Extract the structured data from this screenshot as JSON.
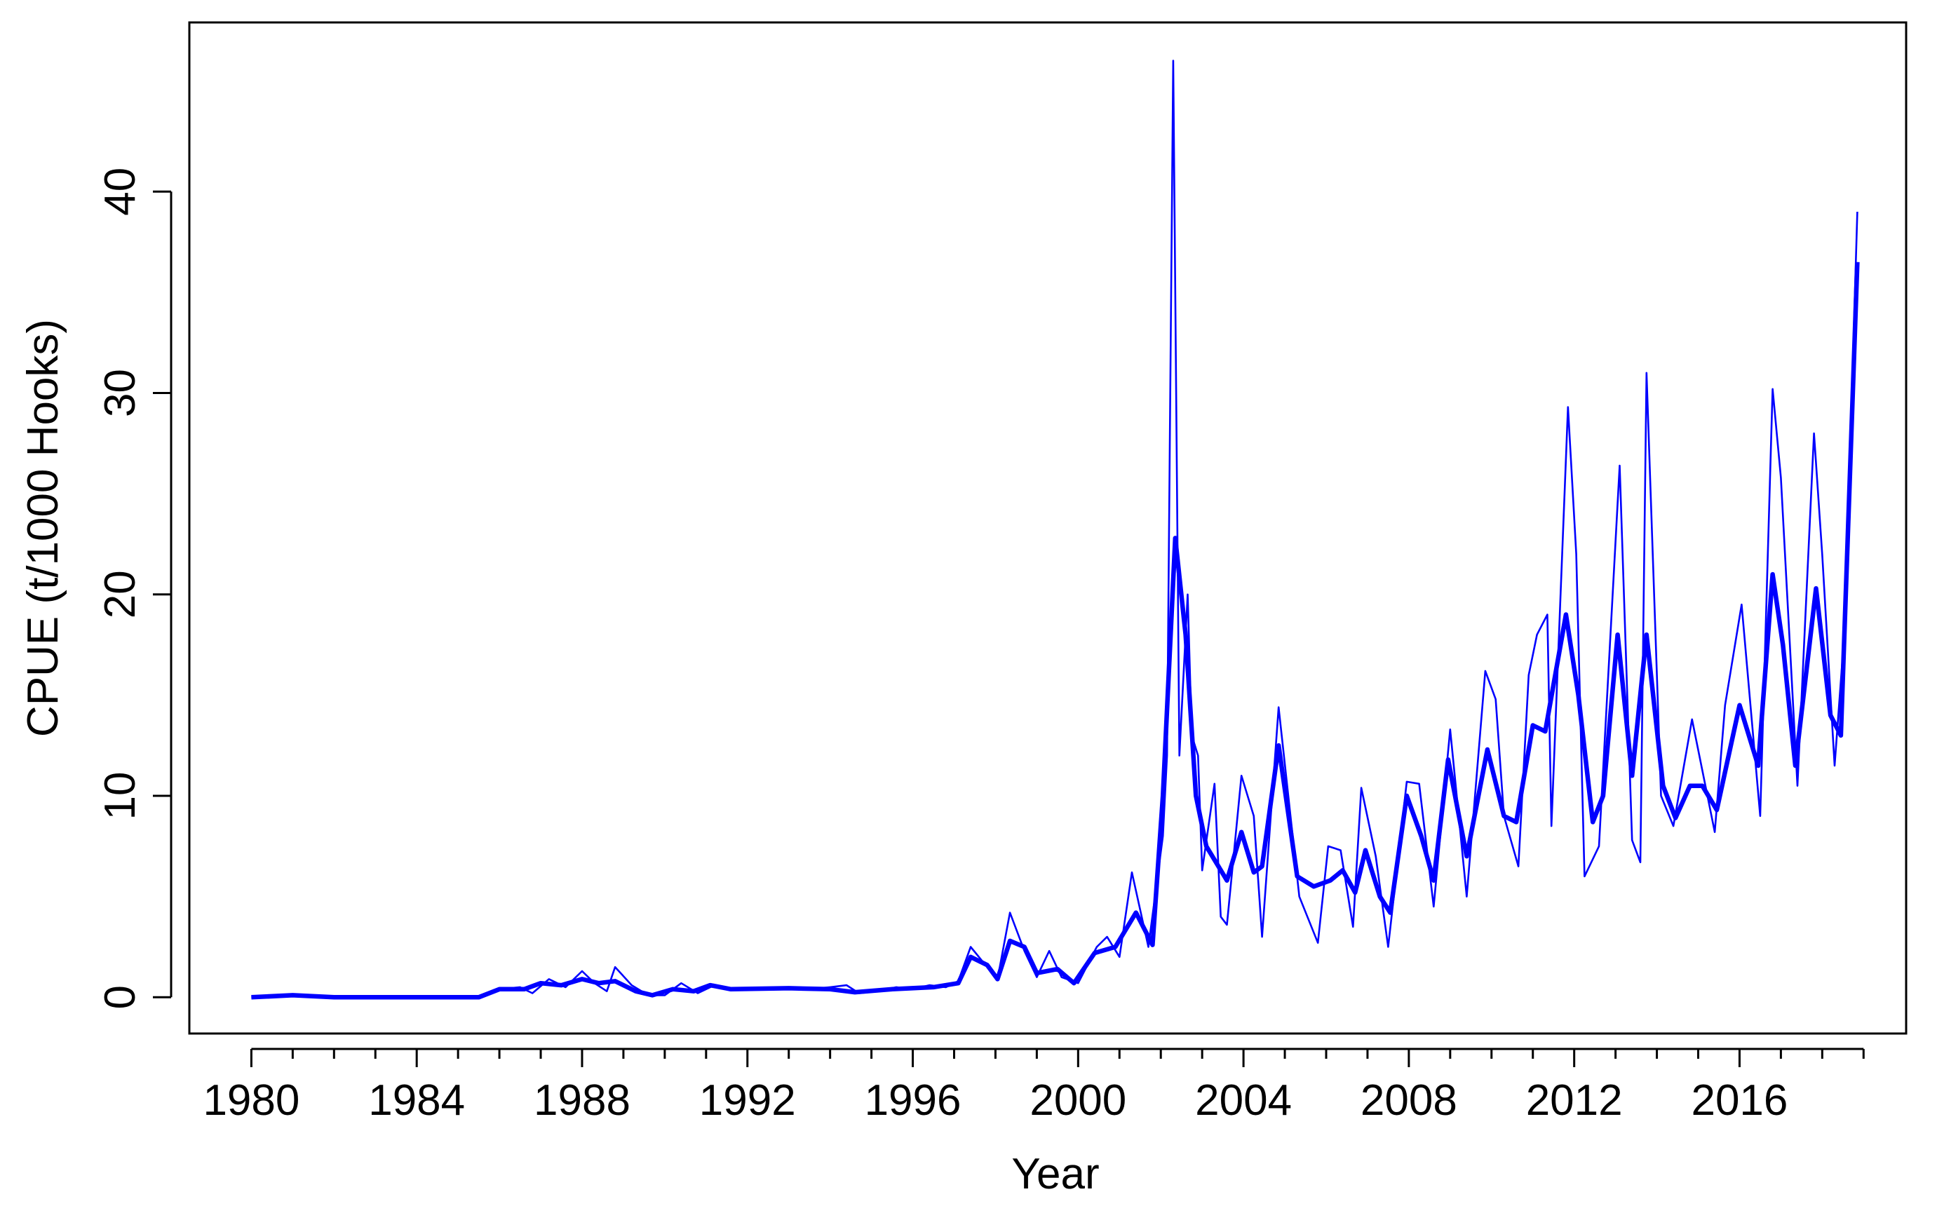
{
  "chart_data": {
    "type": "line",
    "xlabel": "Year",
    "ylabel": "CPUE (t/1000 Hooks)",
    "xlim": [
      1978.5,
      2020.03
    ],
    "ylim": [
      -1.8,
      48.4
    ],
    "xticks": [
      1980,
      1984,
      1988,
      1992,
      1996,
      2000,
      2004,
      2008,
      2012,
      2016
    ],
    "xminorticks": [
      1981,
      1982,
      1983,
      1985,
      1986,
      1987,
      1989,
      1990,
      1991,
      1993,
      1994,
      1995,
      1997,
      1998,
      1999,
      2001,
      2002,
      2003,
      2005,
      2006,
      2007,
      2009,
      2010,
      2011,
      2013,
      2014,
      2015,
      2017,
      2018,
      2019
    ],
    "yticks": [
      0,
      10,
      20,
      30,
      40
    ],
    "grid": false,
    "series": [
      {
        "color": "#0000ff",
        "width": 1,
        "x": [
          1980,
          1980.5,
          1981,
          1982,
          1983,
          1984,
          1985,
          1985.5,
          1986,
          1986.5,
          1986.8,
          1987.2,
          1987.6,
          1988,
          1988.3,
          1988.6,
          1988.8,
          1989.2,
          1989.6,
          1990,
          1990.4,
          1990.8,
          1991.2,
          1991.6,
          1992,
          1992.5,
          1993,
          1993.5,
          1994,
          1994.4,
          1994.7,
          1995.2,
          1995.6,
          1996,
          1996.4,
          1996.8,
          1997.1,
          1997.4,
          1997.8,
          1998.05,
          1998.35,
          1998.7,
          1999.0,
          1999.3,
          1999.6,
          2000,
          2000.45,
          2000.7,
          2001.0,
          2001.3,
          2001.7,
          2002.05,
          2002.15,
          2002.3,
          2002.45,
          2002.65,
          2002.75,
          2002.9,
          2003,
          2003.3,
          2003.45,
          2003.6,
          2003.95,
          2004.25,
          2004.45,
          2004.85,
          2005.35,
          2005.8,
          2006.05,
          2006.35,
          2006.65,
          2006.85,
          2007.2,
          2007.5,
          2007.95,
          2008.25,
          2008.6,
          2009,
          2009.4,
          2009.85,
          2010.1,
          2010.3,
          2010.65,
          2010.9,
          2011.1,
          2011.35,
          2011.45,
          2011.85,
          2012.05,
          2012.25,
          2012.6,
          2013.1,
          2013.4,
          2013.6,
          2013.75,
          2014.1,
          2014.4,
          2014.85,
          2015.4,
          2015.65,
          2016.05,
          2016.5,
          2016.8,
          2017,
          2017.4,
          2017.8,
          2018,
          2018.3,
          2018.55,
          2018.85
        ],
        "values": [
          0,
          0.05,
          0.1,
          0,
          0.05,
          0,
          0.05,
          0,
          0.4,
          0.5,
          0.2,
          0.9,
          0.5,
          1.3,
          0.7,
          0.3,
          1.5,
          0.6,
          0.1,
          0.1,
          0.7,
          0.2,
          0.6,
          0.4,
          0.45,
          0.4,
          0.5,
          0.4,
          0.5,
          0.6,
          0.2,
          0.3,
          0.5,
          0.4,
          0.6,
          0.5,
          0.8,
          2.5,
          1.5,
          0.9,
          4.2,
          2.3,
          1.0,
          2.3,
          1.0,
          0.7,
          2.5,
          3.0,
          2.0,
          6.2,
          2.5,
          8,
          12,
          46.5,
          12,
          20,
          13,
          12,
          6.3,
          10.6,
          4,
          3.6,
          11,
          9,
          3,
          14.4,
          5,
          2.7,
          7.5,
          7.3,
          3.5,
          10.4,
          7,
          2.5,
          10.7,
          10.6,
          4.5,
          13.3,
          5,
          16.2,
          14.8,
          9,
          6.5,
          16,
          18,
          19,
          8.5,
          29.3,
          22,
          6,
          7.5,
          26.4,
          7.8,
          6.7,
          31,
          10,
          8.5,
          13.8,
          8.2,
          14.5,
          19.5,
          9,
          30.2,
          25.8,
          10.5,
          28,
          22,
          11.5,
          18.5,
          39
        ]
      },
      {
        "color": "#0000ff",
        "width": 2.5,
        "x": [
          1980,
          1981,
          1982,
          1984,
          1985.5,
          1986,
          1986.6,
          1987,
          1987.5,
          1988,
          1988.4,
          1988.8,
          1989.3,
          1989.7,
          1990.2,
          1990.7,
          1991.1,
          1991.6,
          1993,
          1994,
          1994.6,
          1995.5,
          1996.5,
          1997.1,
          1997.4,
          1997.8,
          1998.05,
          1998.35,
          1998.7,
          1999,
          1999.5,
          1999.9,
          2000.4,
          2000.9,
          2001.4,
          2001.8,
          2002.05,
          2002.35,
          2002.6,
          2002.85,
          2003.1,
          2003.6,
          2003.95,
          2004.25,
          2004.45,
          2004.85,
          2005.3,
          2005.7,
          2006.1,
          2006.4,
          2006.7,
          2006.95,
          2007.3,
          2007.55,
          2007.95,
          2008.3,
          2008.6,
          2008.95,
          2009.4,
          2009.9,
          2010.3,
          2010.6,
          2011,
          2011.3,
          2011.8,
          2012.1,
          2012.45,
          2012.7,
          2013.05,
          2013.4,
          2013.75,
          2014.15,
          2014.45,
          2014.8,
          2015.1,
          2015.45,
          2016,
          2016.45,
          2016.8,
          2017.05,
          2017.35,
          2017.85,
          2018.2,
          2018.45,
          2018.85
        ],
        "values": [
          0,
          0.1,
          0,
          0,
          0,
          0.4,
          0.4,
          0.7,
          0.6,
          0.9,
          0.7,
          0.8,
          0.3,
          0.1,
          0.4,
          0.3,
          0.6,
          0.4,
          0.45,
          0.4,
          0.25,
          0.4,
          0.5,
          0.7,
          2.0,
          1.6,
          0.9,
          2.8,
          2.5,
          1.2,
          1.4,
          0.7,
          2.2,
          2.5,
          4.2,
          2.6,
          10,
          22.8,
          18,
          10,
          7.5,
          5.8,
          8.2,
          6.2,
          6.5,
          12.5,
          6,
          5.5,
          5.8,
          6.3,
          5.2,
          7.3,
          5,
          4.2,
          10,
          8,
          5.8,
          11.8,
          7,
          12.3,
          9,
          8.7,
          13.5,
          13.2,
          19,
          15,
          8.7,
          10,
          18,
          11,
          18,
          10.5,
          8.9,
          10.5,
          10.5,
          9.3,
          14.5,
          11.5,
          21,
          17.5,
          11.5,
          20.3,
          14,
          13,
          36.5
        ]
      }
    ]
  }
}
